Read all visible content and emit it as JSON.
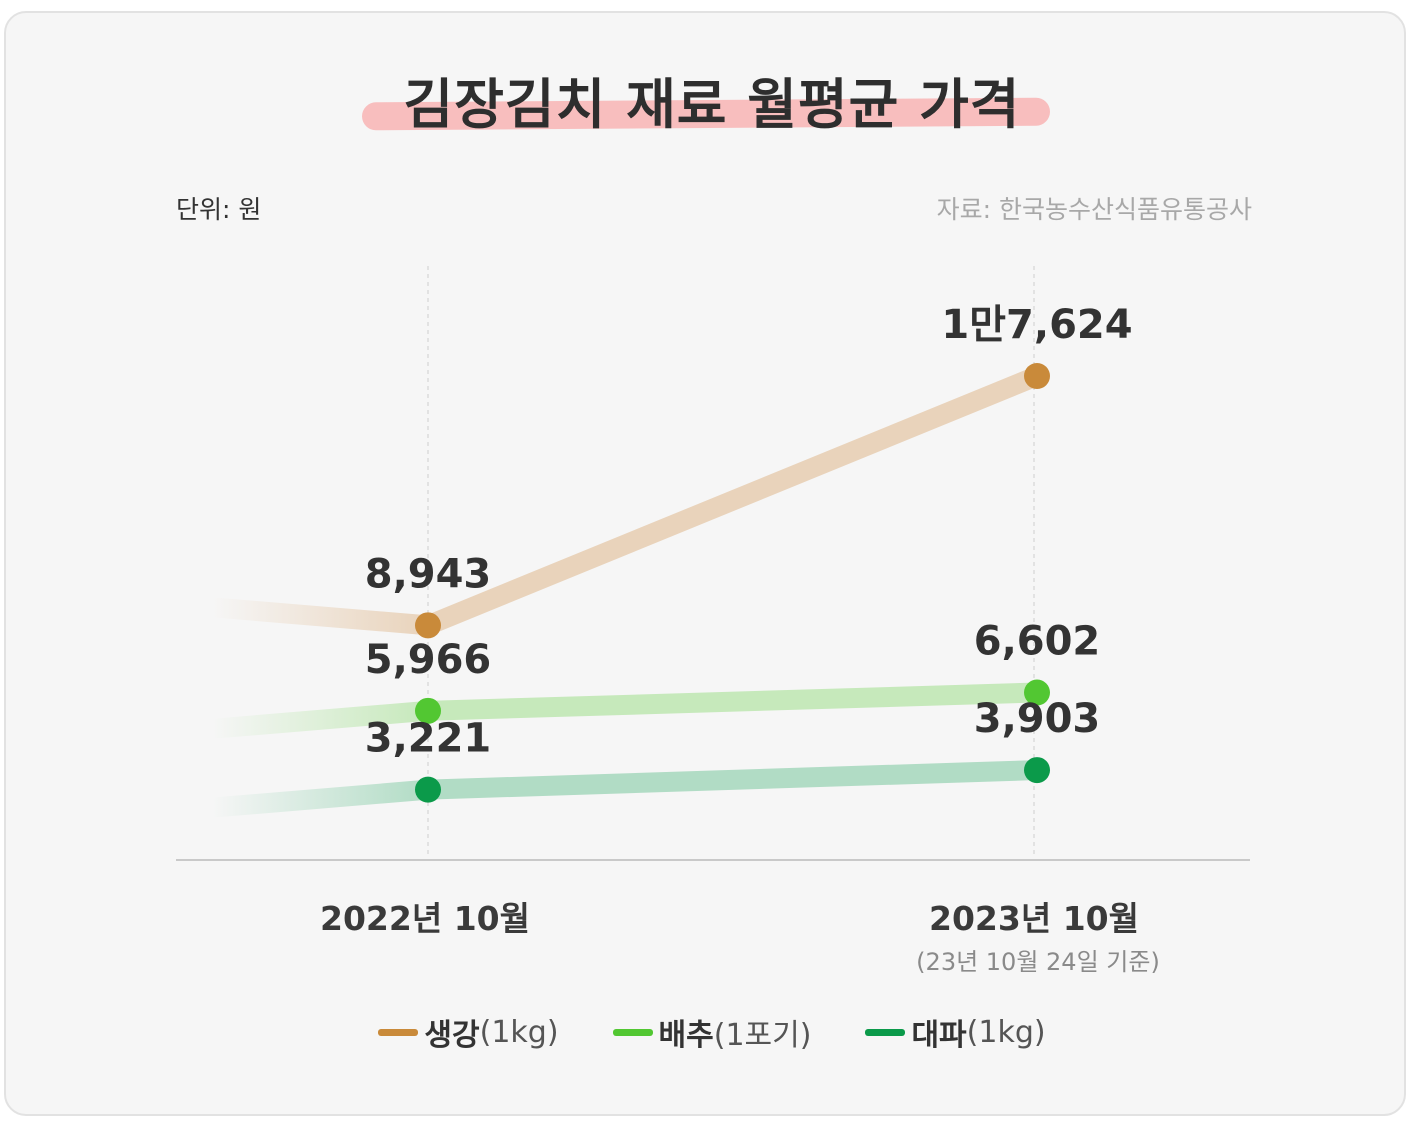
{
  "title": "김장김치 재료 월평균 가격",
  "unit_label": "단위: 원",
  "source_label": "자료: 한국농수산식품유통공사",
  "x_note": "(23년 10월 24일 기준)",
  "colors": {
    "ginger": "#c98a3a",
    "cabbage": "#52c732",
    "greenonion": "#0b9a4a",
    "highlight": "#f8b4b4"
  },
  "chart_data": {
    "type": "line",
    "categories": [
      "2022년 10월",
      "2023년 10월"
    ],
    "series": [
      {
        "name": "생강",
        "unit": "(1kg)",
        "values": [
          8943,
          17624
        ],
        "labels": [
          "8,943",
          "1만7,624"
        ]
      },
      {
        "name": "배추",
        "unit": "(1포기)",
        "values": [
          5966,
          6602
        ],
        "labels": [
          "5,966",
          "6,602"
        ]
      },
      {
        "name": "대파",
        "unit": "(1kg)",
        "values": [
          3221,
          3903
        ],
        "labels": [
          "3,221",
          "3,903"
        ]
      }
    ],
    "legend": "bottom",
    "grid": false
  }
}
